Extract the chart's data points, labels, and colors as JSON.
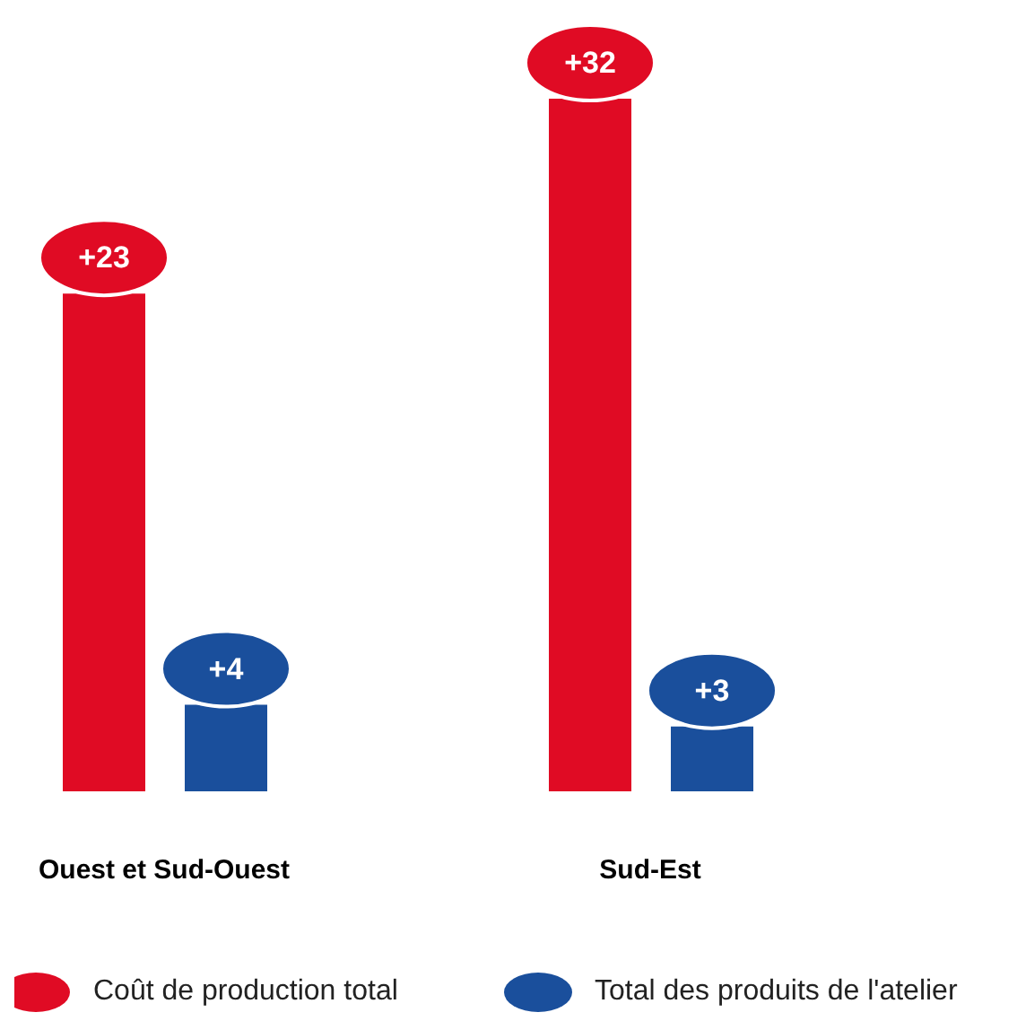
{
  "chart_data": {
    "type": "bar",
    "categories": [
      "Ouest et Sud-Ouest",
      "Sud-Est"
    ],
    "series": [
      {
        "name": "Coût de production total",
        "color": "#e00b24",
        "values": [
          23,
          32
        ],
        "value_labels": [
          "+23",
          "+32"
        ]
      },
      {
        "name": "Total des produits de l'atelier",
        "color": "#1a4f9c",
        "values": [
          4,
          3
        ],
        "value_labels": [
          "+4",
          "+3"
        ]
      }
    ],
    "legend": "bottom"
  }
}
